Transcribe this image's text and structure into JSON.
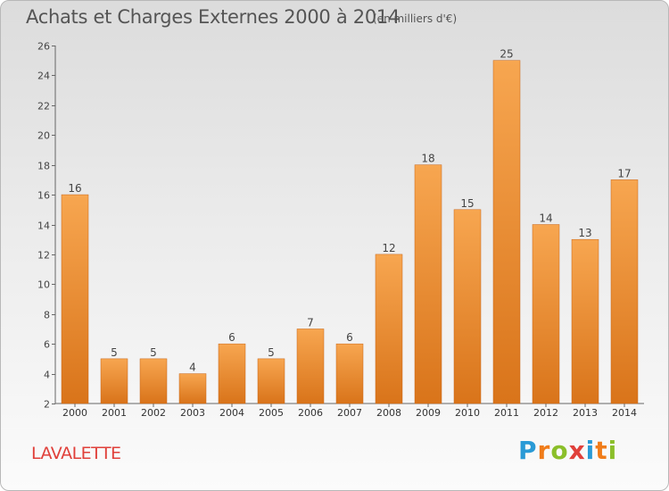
{
  "chart_data": {
    "type": "bar",
    "title": "Achats et Charges Externes 2000 à 2014",
    "subtitle": "(en milliers d'€)",
    "categories": [
      "2000",
      "2001",
      "2002",
      "2003",
      "2004",
      "2005",
      "2006",
      "2007",
      "2008",
      "2009",
      "2010",
      "2011",
      "2012",
      "2013",
      "2014"
    ],
    "values": [
      16,
      5,
      5,
      4,
      6,
      5,
      7,
      6,
      12,
      18,
      15,
      25,
      14,
      13,
      17
    ],
    "ylim": [
      2,
      26
    ],
    "yticks": [
      2,
      4,
      6,
      8,
      10,
      12,
      14,
      16,
      18,
      20,
      22,
      24,
      26
    ],
    "grid": false,
    "bar_color": "#f08a2a",
    "xlabel": "",
    "ylabel": ""
  },
  "footer": {
    "commune": "LAVALETTE",
    "logo": {
      "letters": [
        "P",
        "r",
        "o",
        "x",
        "i",
        "t",
        "i"
      ],
      "colors": [
        "#2a9ad6",
        "#f07c1a",
        "#8bbf2a",
        "#e0403a",
        "#2a9ad6",
        "#f07c1a",
        "#8bbf2a"
      ]
    }
  }
}
